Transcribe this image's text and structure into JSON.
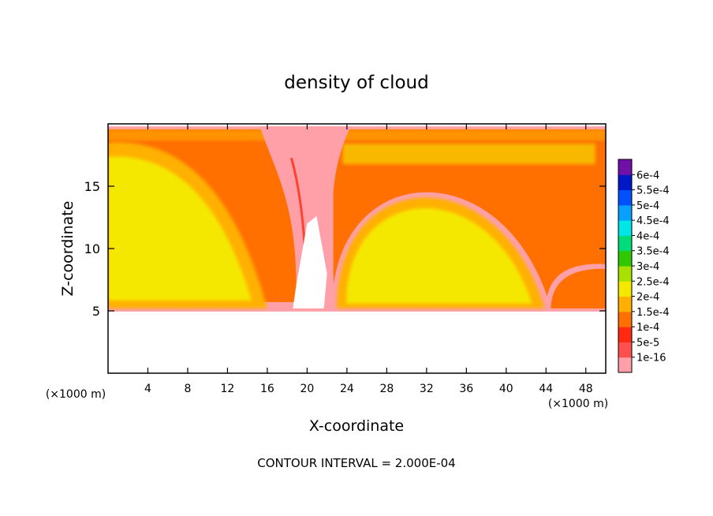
{
  "title": "density of cloud",
  "footer": "CONTOUR INTERVAL = 2.000E-04",
  "chart_data": {
    "type": "heatmap",
    "title": "density of cloud",
    "xlabel": "X-coordinate",
    "ylabel": "Z-coordinate",
    "x_unit": "(×1000 m)",
    "z_unit": "(×1000 m)",
    "xlim": [
      0,
      50
    ],
    "ylim": [
      0,
      20
    ],
    "x_ticks": [
      4,
      8,
      12,
      16,
      20,
      24,
      28,
      32,
      36,
      40,
      44,
      48
    ],
    "y_ticks": [
      5,
      10,
      15
    ],
    "contour_interval": "2.000E-04",
    "colorbar": {
      "labels": [
        "6e-4",
        "5.5e-4",
        "5e-4",
        "4.5e-4",
        "4e-4",
        "3.5e-4",
        "3e-4",
        "2.5e-4",
        "2e-4",
        "1.5e-4",
        "1e-4",
        "5e-5",
        "1e-16"
      ],
      "colors": [
        "#ff9fa8",
        "#ff5050",
        "#ff2a10",
        "#ff7000",
        "#ffb000",
        "#f5e800",
        "#a8e000",
        "#30c800",
        "#00dc78",
        "#00e6e6",
        "#08a0ff",
        "#0050ff",
        "#0018c8",
        "#7010a8"
      ]
    },
    "field": {
      "cloud_base_z": 5.2,
      "cloud_top_z": 19.8,
      "clear_gap_x": [
        20.0,
        22.0
      ],
      "features": [
        {
          "type": "dome",
          "x0": 0.0,
          "x1": 16.0,
          "top": 18.5
        },
        {
          "type": "dome",
          "x0": 22.5,
          "x1": 44.5,
          "top": 16.8
        },
        {
          "type": "dome",
          "x0": 44.0,
          "x1": 50.0,
          "top": 9.0
        }
      ]
    }
  }
}
